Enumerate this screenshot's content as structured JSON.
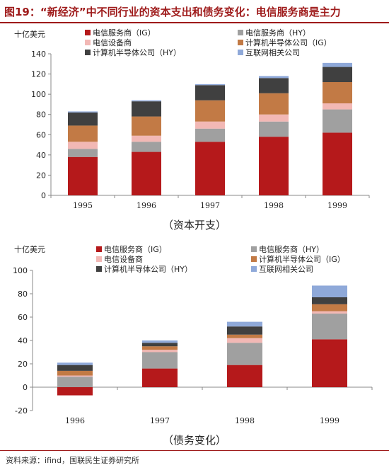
{
  "figure": {
    "title": "图19：“新经济”中不同行业的资本支出和债务变化：电信服务商是主力",
    "source": "资料来源：ifind，国联民生证券研究所"
  },
  "chart_data": [
    {
      "type": "bar",
      "stacked": true,
      "title": "",
      "caption": "（资本开支）",
      "ylabel": "十亿美元",
      "xlabel": "",
      "ylim": [
        0,
        140
      ],
      "yticks": [
        0,
        20,
        40,
        60,
        80,
        100,
        120,
        140
      ],
      "grid": false,
      "legend": "top",
      "categories": [
        "1995",
        "1996",
        "1997",
        "1998",
        "1999"
      ],
      "series": [
        {
          "name": "电信服务商（IG）",
          "color": "#b5191b",
          "values": [
            38,
            43,
            53,
            58,
            62
          ]
        },
        {
          "name": "电信服务商（HY）",
          "color": "#a0a0a0",
          "values": [
            8,
            10,
            13,
            15,
            23
          ]
        },
        {
          "name": "电信设备商",
          "color": "#f2b8b5",
          "values": [
            7,
            6,
            7,
            7,
            6
          ]
        },
        {
          "name": "计算机半导体公司（IG）",
          "color": "#c27a45",
          "values": [
            16,
            19,
            21,
            21,
            21
          ]
        },
        {
          "name": "计算机半导体公司（HY）",
          "color": "#404040",
          "values": [
            13,
            15,
            15,
            15,
            15
          ]
        },
        {
          "name": "互联网相关公司",
          "color": "#8fa9d9",
          "values": [
            1,
            1,
            1,
            2,
            4
          ]
        }
      ]
    },
    {
      "type": "bar",
      "stacked": true,
      "title": "",
      "caption": "（债务变化）",
      "ylabel": "十亿美元",
      "xlabel": "",
      "ylim": [
        -20,
        100
      ],
      "yticks": [
        -20,
        0,
        20,
        40,
        60,
        80,
        100
      ],
      "grid": false,
      "legend": "top",
      "categories": [
        "1996",
        "1997",
        "1998",
        "1999"
      ],
      "series": [
        {
          "name": "电信服务商（IG）",
          "color": "#b5191b",
          "values": [
            -7,
            16,
            19,
            41
          ]
        },
        {
          "name": "电信服务商（HY）",
          "color": "#a0a0a0",
          "values": [
            9,
            14,
            19,
            22
          ]
        },
        {
          "name": "电信设备商",
          "color": "#f2b8b5",
          "values": [
            1,
            2,
            4,
            2
          ]
        },
        {
          "name": "计算机半导体公司（IG）",
          "color": "#c27a45",
          "values": [
            4,
            3,
            3,
            6
          ]
        },
        {
          "name": "计算机半导体公司（HY）",
          "color": "#404040",
          "values": [
            5,
            3,
            7,
            6
          ]
        },
        {
          "name": "互联网相关公司",
          "color": "#8fa9d9",
          "values": [
            2,
            2,
            4,
            10
          ]
        }
      ]
    }
  ]
}
